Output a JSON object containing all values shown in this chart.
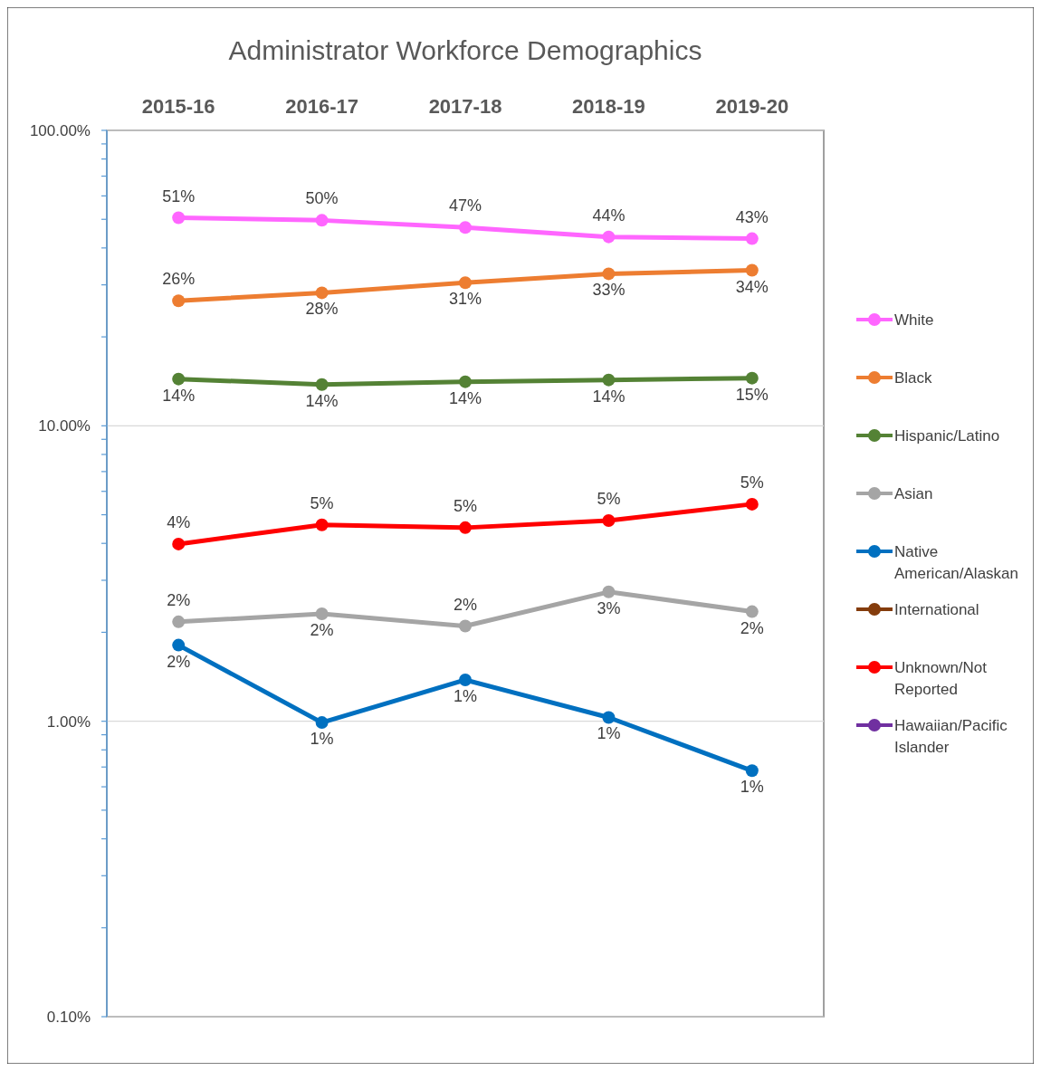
{
  "chart_data": {
    "type": "line",
    "title": "Administrator Workforce Demographics",
    "categories": [
      "2015-16",
      "2016-17",
      "2017-18",
      "2018-19",
      "2019-20"
    ],
    "log": "y",
    "ylim": [
      0.1,
      100
    ],
    "yticks": [
      {
        "value": 0.1,
        "label": "0.10%"
      },
      {
        "value": 0.2,
        "label": null
      },
      {
        "value": 0.3,
        "label": null
      },
      {
        "value": 0.4,
        "label": null
      },
      {
        "value": 0.5,
        "label": null
      },
      {
        "value": 0.6,
        "label": null
      },
      {
        "value": 0.7,
        "label": null
      },
      {
        "value": 0.8,
        "label": null
      },
      {
        "value": 0.9,
        "label": null
      },
      {
        "value": 1,
        "label": "1.00%"
      },
      {
        "value": 2,
        "label": null
      },
      {
        "value": 3,
        "label": null
      },
      {
        "value": 4,
        "label": null
      },
      {
        "value": 5,
        "label": null
      },
      {
        "value": 6,
        "label": null
      },
      {
        "value": 7,
        "label": null
      },
      {
        "value": 8,
        "label": null
      },
      {
        "value": 9,
        "label": null
      },
      {
        "value": 10,
        "label": "10.00%"
      },
      {
        "value": 20,
        "label": null
      },
      {
        "value": 30,
        "label": null
      },
      {
        "value": 40,
        "label": null
      },
      {
        "value": 50,
        "label": null
      },
      {
        "value": 60,
        "label": null
      },
      {
        "value": 70,
        "label": null
      },
      {
        "value": 80,
        "label": null
      },
      {
        "value": 90,
        "label": null
      },
      {
        "value": 100,
        "label": "100.00%"
      }
    ],
    "grid": "y",
    "legend": "right",
    "marker": "circle",
    "line_style": "solid",
    "series": [
      {
        "name": "White",
        "color": "#ff66ff",
        "values": [
          50.6,
          49.6,
          46.9,
          43.6,
          43.0
        ],
        "value_labels": [
          "51%",
          "50%",
          "47%",
          "44%",
          "43%"
        ]
      },
      {
        "name": "Black",
        "color": "#ed7d31",
        "values": [
          26.5,
          28.2,
          30.5,
          32.7,
          33.6
        ],
        "value_labels": [
          "26%",
          "28%",
          "31%",
          "33%",
          "34%"
        ]
      },
      {
        "name": "Hispanic/Latino",
        "color": "#548235",
        "values": [
          14.4,
          13.8,
          14.1,
          14.3,
          14.5
        ],
        "value_labels": [
          "14%",
          "14%",
          "14%",
          "14%",
          "15%"
        ]
      },
      {
        "name": "Asian",
        "color": "#a5a5a5",
        "values": [
          2.17,
          2.31,
          2.1,
          2.74,
          2.35
        ],
        "value_labels": [
          "2%",
          "2%",
          "2%",
          "3%",
          "2%"
        ]
      },
      {
        "name": "Native American/Alaskan",
        "color": "#0070c0",
        "values": [
          1.81,
          0.99,
          1.38,
          1.03,
          0.68
        ],
        "value_labels": [
          "2%",
          "1%",
          "1%",
          "1%",
          "1%"
        ]
      },
      {
        "name": "International",
        "color": "#843c0c",
        "values": [
          null,
          null,
          null,
          null,
          null
        ]
      },
      {
        "name": "Unknown/Not Reported",
        "color": "#ff0000",
        "values": [
          3.98,
          4.62,
          4.52,
          4.78,
          5.43
        ],
        "value_labels": [
          "4%",
          "5%",
          "5%",
          "5%",
          "5%"
        ]
      },
      {
        "name": "Hawaiian/Pacific Islander",
        "color": "#7030a0",
        "values": [
          null,
          null,
          null,
          null,
          null
        ]
      }
    ]
  }
}
